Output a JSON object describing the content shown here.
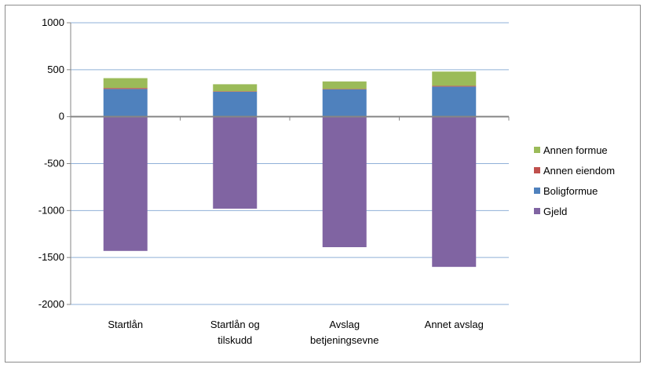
{
  "chart_data": {
    "type": "bar",
    "stacked": true,
    "categories": [
      [
        "Startlån"
      ],
      [
        "Startlån og",
        "tilskudd"
      ],
      [
        "Avslag",
        "betjeningsevne"
      ],
      [
        "Annet avslag"
      ]
    ],
    "series": [
      {
        "name": "Gjeld",
        "color": "#8064a2",
        "values": [
          -1430,
          -980,
          -1390,
          -1600
        ]
      },
      {
        "name": "Boligformue",
        "color": "#4f81bd",
        "values": [
          295,
          265,
          290,
          320
        ]
      },
      {
        "name": "Annen eiendom",
        "color": "#c0504d",
        "values": [
          10,
          5,
          5,
          8
        ]
      },
      {
        "name": "Annen formue",
        "color": "#9bbb59",
        "values": [
          105,
          75,
          80,
          152
        ]
      }
    ],
    "legend_order": [
      "Annen formue",
      "Annen eiendom",
      "Boligformue",
      "Gjeld"
    ],
    "ylim": [
      -2000,
      1000
    ],
    "yticks": [
      1000,
      500,
      0,
      -500,
      -1000,
      -1500,
      -2000
    ],
    "grid": true,
    "legend_position": "right",
    "title": "",
    "xlabel": "",
    "ylabel": ""
  }
}
